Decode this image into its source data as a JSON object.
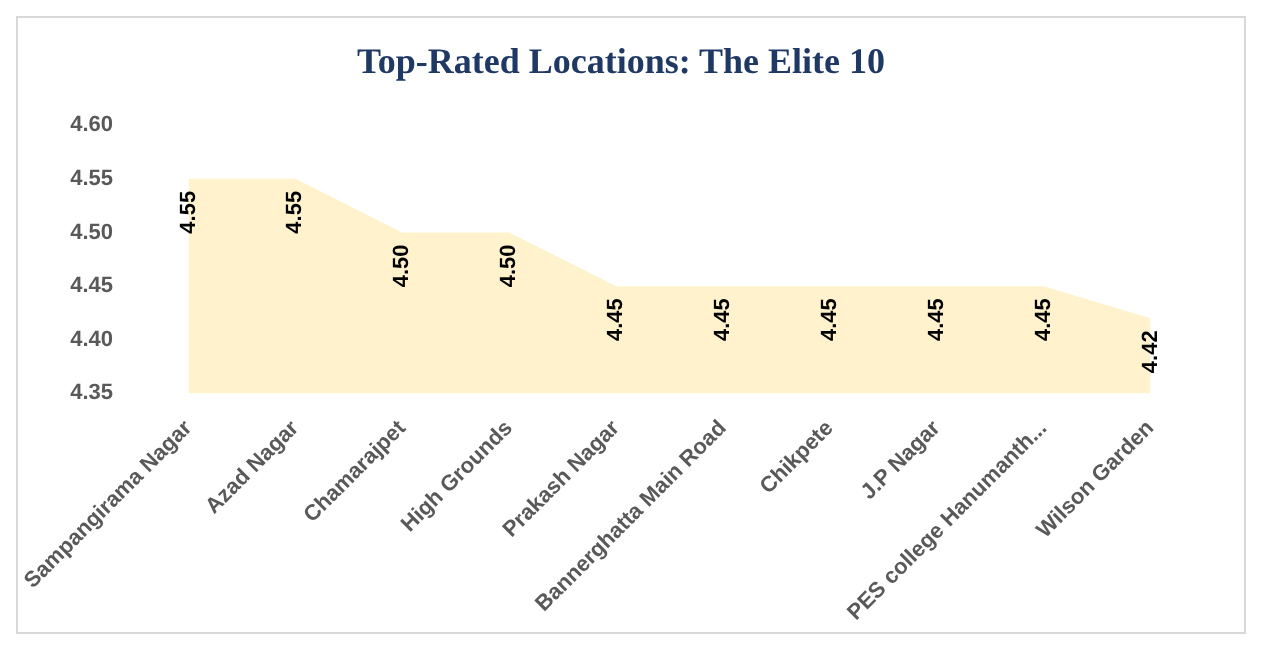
{
  "chart_data": {
    "type": "area",
    "title": "Top-Rated Locations: The Elite 10",
    "categories": [
      "Sampangirama Nagar",
      "Azad Nagar",
      "Chamarajpet",
      "High Grounds",
      "Prakash Nagar",
      "Bannerghatta Main Road",
      "Chikpete",
      "J.P Nagar",
      "PES college Hanumanth...",
      "Wilson Garden"
    ],
    "series": [
      {
        "color": "#fff2cc",
        "values": [
          4.55,
          4.55,
          4.5,
          4.5,
          4.45,
          4.45,
          4.45,
          4.45,
          4.45,
          4.42
        ],
        "value_labels": [
          "4.55",
          "4.55",
          "4.50",
          "4.50",
          "4.45",
          "4.45",
          "4.45",
          "4.45",
          "4.45",
          "4.42"
        ]
      }
    ],
    "ylim": [
      4.35,
      4.6
    ],
    "yticks": [
      4.35,
      {
        "value": 4.4,
        "label": "4.40"
      },
      4.45,
      {
        "value": 4.5,
        "label": "4.50"
      },
      4.55,
      {
        "value": 4.6,
        "label": "4.60"
      }
    ],
    "grid": false,
    "legend": false
  }
}
